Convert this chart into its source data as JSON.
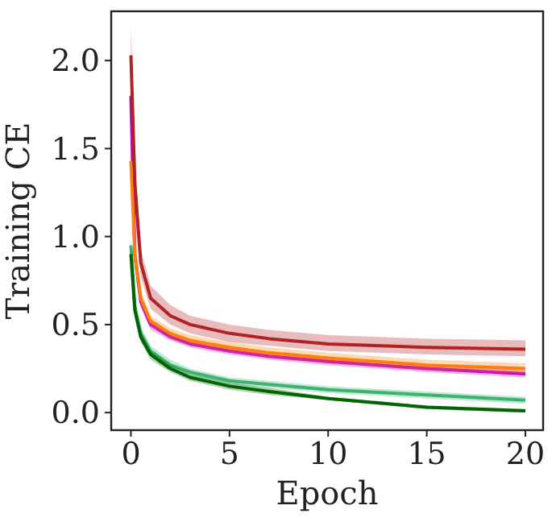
{
  "chart_data": {
    "type": "line",
    "xlabel": "Epoch",
    "ylabel": "Training CE",
    "x": [
      0,
      0.2,
      0.5,
      1,
      2,
      3,
      5,
      7,
      10,
      15,
      20
    ],
    "xlim": [
      -1,
      20.9
    ],
    "ylim": [
      -0.1,
      2.28
    ],
    "xticks": [
      0,
      5,
      10,
      15,
      20
    ],
    "yticks": [
      {
        "value": 0,
        "label": "0.0"
      },
      {
        "value": 0.5,
        "label": "0.5"
      },
      {
        "value": 1,
        "label": "1.0"
      },
      {
        "value": 1.5,
        "label": "1.5"
      },
      {
        "value": 2,
        "label": "2.0"
      }
    ],
    "grid": false,
    "line_style": "solid",
    "marker": "none",
    "series": [
      {
        "color": "#3cb371",
        "values": [
          0.95,
          0.6,
          0.45,
          0.35,
          0.27,
          0.23,
          0.18,
          0.16,
          0.13,
          0.1,
          0.07
        ],
        "lower": [
          0.88,
          0.55,
          0.41,
          0.32,
          0.24,
          0.21,
          0.16,
          0.14,
          0.11,
          0.08,
          0.05
        ],
        "upper": [
          1.0,
          0.65,
          0.49,
          0.38,
          0.3,
          0.25,
          0.2,
          0.18,
          0.15,
          0.12,
          0.09
        ]
      },
      {
        "color": "#006400",
        "values": [
          0.9,
          0.58,
          0.43,
          0.33,
          0.25,
          0.2,
          0.15,
          0.12,
          0.08,
          0.03,
          0.01
        ],
        "lower": [
          0.85,
          0.55,
          0.4,
          0.3,
          0.23,
          0.18,
          0.13,
          0.1,
          0.07,
          0.02,
          0.0
        ],
        "upper": [
          0.95,
          0.61,
          0.46,
          0.35,
          0.27,
          0.22,
          0.17,
          0.14,
          0.09,
          0.04,
          0.02
        ]
      },
      {
        "color": "#bf00d0",
        "values": [
          1.8,
          0.9,
          0.63,
          0.5,
          0.43,
          0.39,
          0.35,
          0.32,
          0.29,
          0.25,
          0.22
        ],
        "lower": [
          1.65,
          0.85,
          0.6,
          0.47,
          0.41,
          0.37,
          0.33,
          0.3,
          0.27,
          0.23,
          0.2
        ],
        "upper": [
          1.95,
          0.95,
          0.66,
          0.53,
          0.45,
          0.41,
          0.37,
          0.34,
          0.31,
          0.27,
          0.24
        ]
      },
      {
        "color": "#ff7f0e",
        "values": [
          1.43,
          0.9,
          0.65,
          0.52,
          0.45,
          0.41,
          0.37,
          0.34,
          0.31,
          0.27,
          0.25
        ],
        "lower": [
          1.35,
          0.85,
          0.61,
          0.49,
          0.42,
          0.38,
          0.34,
          0.31,
          0.28,
          0.24,
          0.22
        ],
        "upper": [
          1.5,
          0.95,
          0.69,
          0.55,
          0.48,
          0.44,
          0.4,
          0.37,
          0.34,
          0.3,
          0.28
        ]
      },
      {
        "color": "#b22222",
        "values": [
          2.03,
          1.3,
          0.85,
          0.65,
          0.55,
          0.5,
          0.45,
          0.42,
          0.39,
          0.37,
          0.36
        ],
        "lower": [
          1.85,
          1.15,
          0.77,
          0.59,
          0.5,
          0.45,
          0.4,
          0.38,
          0.35,
          0.33,
          0.32
        ],
        "upper": [
          2.2,
          1.45,
          0.93,
          0.72,
          0.61,
          0.55,
          0.5,
          0.47,
          0.44,
          0.42,
          0.41
        ]
      }
    ]
  }
}
